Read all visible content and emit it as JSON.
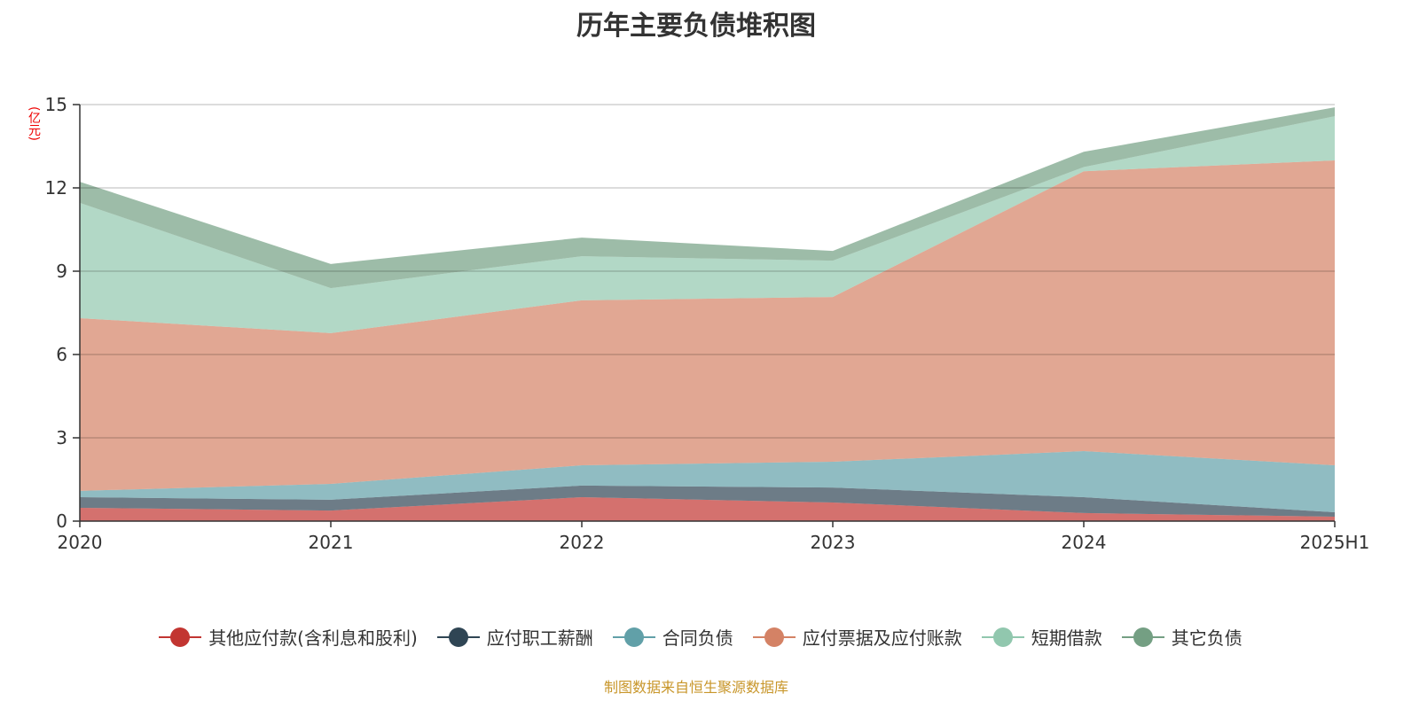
{
  "chart_data": {
    "type": "area",
    "stacked": true,
    "title": "历年主要负债堆积图",
    "ylabel": "(亿元)",
    "xlabel": "",
    "categories": [
      "2020",
      "2021",
      "2022",
      "2023",
      "2024",
      "2025H1"
    ],
    "ylim": [
      0,
      15
    ],
    "yticks": [
      0,
      3,
      6,
      9,
      12,
      15
    ],
    "grid": true,
    "legend_position": "bottom",
    "series": [
      {
        "name": "其他应付款(含利息和股利)",
        "color": "#c23531",
        "values": [
          0.48,
          0.38,
          0.86,
          0.67,
          0.29,
          0.16
        ]
      },
      {
        "name": "应付职工薪酬",
        "color": "#2f4554",
        "values": [
          0.38,
          0.39,
          0.42,
          0.54,
          0.57,
          0.16
        ]
      },
      {
        "name": "合同负债",
        "color": "#61a0a8",
        "values": [
          0.23,
          0.57,
          0.73,
          0.93,
          1.66,
          1.69
        ]
      },
      {
        "name": "应付票据及应付账款",
        "color": "#d48265",
        "values": [
          6.22,
          5.43,
          5.94,
          5.93,
          10.08,
          10.98
        ]
      },
      {
        "name": "短期借款",
        "color": "#91c7ae",
        "values": [
          4.15,
          1.62,
          1.59,
          1.31,
          0.15,
          1.59
        ]
      },
      {
        "name": "其它负债",
        "color": "#749f83",
        "values": [
          0.76,
          0.87,
          0.67,
          0.35,
          0.55,
          0.32
        ]
      }
    ]
  },
  "footer": "制图数据来自恒生聚源数据库"
}
